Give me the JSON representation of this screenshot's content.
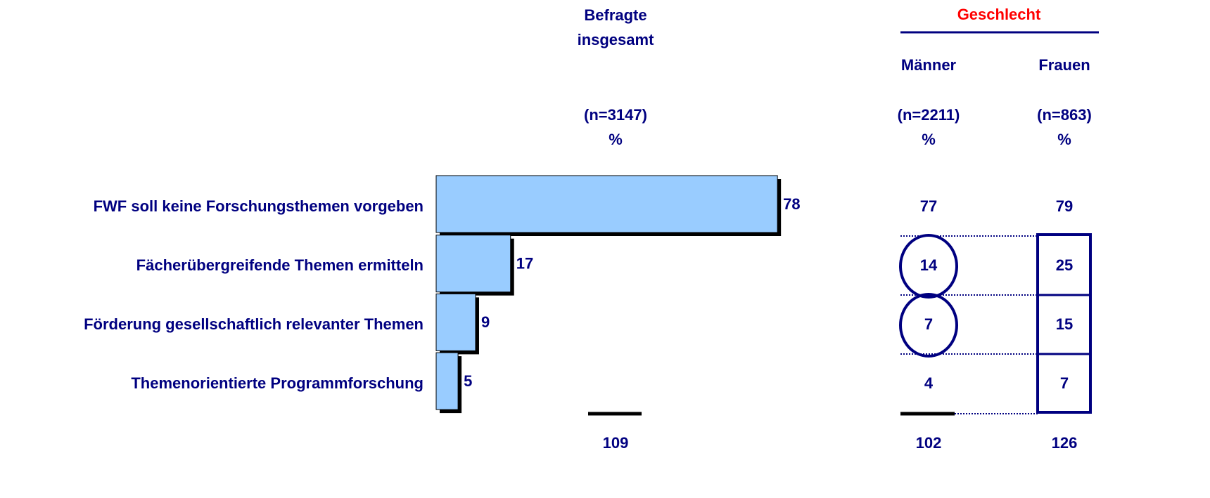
{
  "chart_data": {
    "type": "bar",
    "orientation": "horizontal",
    "categories": [
      "FWF soll keine Forschungsthemen vorgeben",
      "Fächerübergreifende Themen ermitteln",
      "Förderung gesellschaftlich relevanter Themen",
      "Themenorientierte Programmforschung"
    ],
    "xlim": [
      0,
      100
    ],
    "color": "#99ccff",
    "group": "Geschlecht",
    "columns": [
      {
        "name": "Befragte insgesamt",
        "n": "(n=3147)",
        "unit": "%",
        "values": [
          78,
          17,
          9,
          5
        ],
        "total": 109
      },
      {
        "name": "Männer",
        "n": "(n=2211)",
        "unit": "%",
        "values": [
          77,
          14,
          7,
          4
        ],
        "total": 102
      },
      {
        "name": "Frauen",
        "n": "(n=863)",
        "unit": "%",
        "values": [
          79,
          25,
          15,
          7
        ],
        "total": 126
      }
    ]
  }
}
